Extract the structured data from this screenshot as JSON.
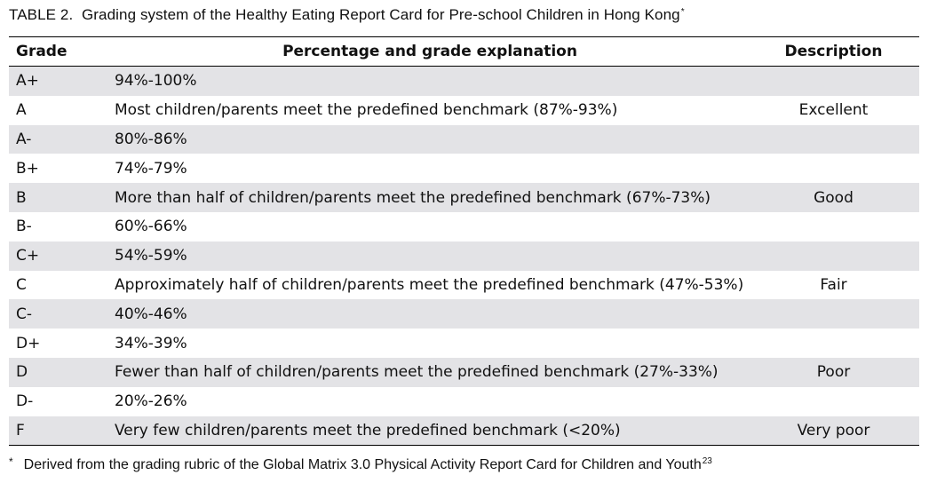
{
  "caption": {
    "label": "TABLE 2.",
    "title": "Grading system of the Healthy Eating Report Card for Pre-school Children in Hong Kong",
    "marker": "*"
  },
  "table": {
    "headers": {
      "grade": "Grade",
      "explanation": "Percentage and grade explanation",
      "description": "Description"
    },
    "rows": [
      {
        "grade": "A+",
        "explanation": "94%-100%",
        "description": ""
      },
      {
        "grade": "A",
        "explanation": "Most children/parents meet the predefined benchmark (87%-93%)",
        "description": "Excellent"
      },
      {
        "grade": "A-",
        "explanation": "80%-86%",
        "description": ""
      },
      {
        "grade": "B+",
        "explanation": "74%-79%",
        "description": ""
      },
      {
        "grade": "B",
        "explanation": "More than half of children/parents meet the predefined benchmark (67%-73%)",
        "description": "Good"
      },
      {
        "grade": "B-",
        "explanation": "60%-66%",
        "description": ""
      },
      {
        "grade": "C+",
        "explanation": "54%-59%",
        "description": ""
      },
      {
        "grade": "C",
        "explanation": "Approximately half of children/parents meet the predefined benchmark (47%-53%)",
        "description": "Fair"
      },
      {
        "grade": "C-",
        "explanation": "40%-46%",
        "description": ""
      },
      {
        "grade": "D+",
        "explanation": "34%-39%",
        "description": ""
      },
      {
        "grade": "D",
        "explanation": "Fewer than half of children/parents meet the predefined benchmark (27%-33%)",
        "description": "Poor"
      },
      {
        "grade": "D-",
        "explanation": "20%-26%",
        "description": ""
      },
      {
        "grade": "F",
        "explanation": "Very few children/parents meet the predefined benchmark (<20%)",
        "description": "Very poor"
      }
    ]
  },
  "footnote": {
    "marker": "*",
    "text": "Derived from the grading rubric of the Global Matrix 3.0 Physical Activity Report Card for Children and Youth",
    "ref": "23"
  }
}
